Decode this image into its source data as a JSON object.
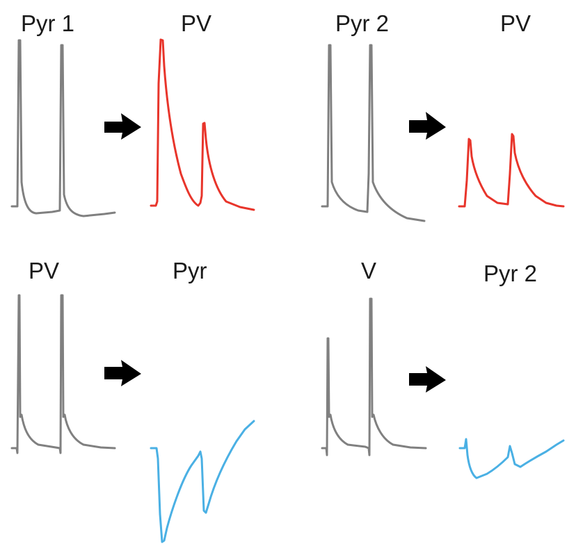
{
  "panels": {
    "top_left": {
      "pre_label": "Pyr 1",
      "post_label": "PV",
      "pre_color": "#808080",
      "post_color": "#e8352b",
      "arrow_icon": "right-arrow-icon"
    },
    "top_right": {
      "pre_label": "Pyr 2",
      "post_label": "PV",
      "pre_color": "#808080",
      "post_color": "#e8352b",
      "arrow_icon": "right-arrow-icon"
    },
    "bottom_left": {
      "pre_label": "PV",
      "post_label": "Pyr",
      "pre_color": "#808080",
      "post_color": "#4ab0e4",
      "arrow_icon": "right-arrow-icon"
    },
    "bottom_right": {
      "pre_label": "V",
      "post_label": "Pyr 2",
      "pre_color": "#808080",
      "post_color": "#4ab0e4",
      "arrow_icon": "right-arrow-icon"
    }
  }
}
